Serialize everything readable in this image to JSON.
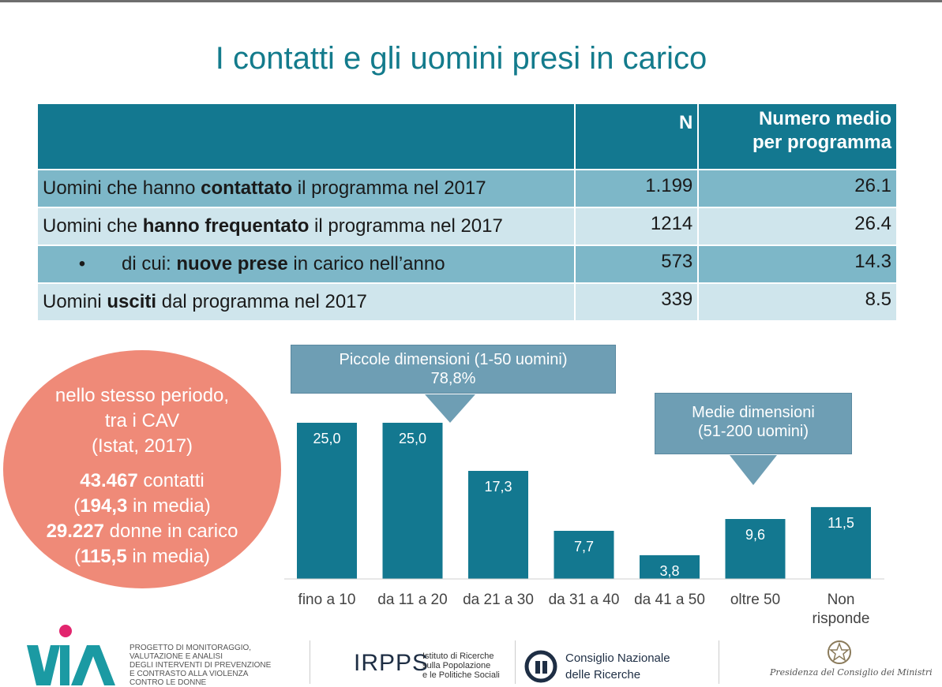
{
  "title": "I contatti e gli uomini presi in carico",
  "table": {
    "header": {
      "n": "N",
      "media_l1": "Numero medio",
      "media_l2": "per programma"
    },
    "rows": [
      {
        "pre": "Uomini che hanno ",
        "bold": "contattato",
        "post": " il programma nel 2017",
        "n": "1.199",
        "media": "26.1"
      },
      {
        "pre": "Uomini che ",
        "bold": "hanno frequentato",
        "post": " il programma nel 2017",
        "n": "1214",
        "media": "26.4"
      },
      {
        "bullet": "•",
        "pre": "di cui: ",
        "bold": "nuove prese",
        "post": " in carico nell’anno",
        "n": "573",
        "media": "14.3"
      },
      {
        "pre": "Uomini ",
        "bold": "usciti",
        "post": " dal programma nel 2017",
        "n": "339",
        "media": "8.5"
      }
    ]
  },
  "circle": {
    "l1": "nello stesso periodo,",
    "l2": "tra i CAV",
    "l3": "(Istat, 2017)",
    "b4": "43.467",
    "t4": " contatti",
    "p5a": "(",
    "b5": "194,3",
    "t5": " in media)",
    "b6": "29.227",
    "t6": " donne in carico",
    "p7a": "(",
    "b7": "115,5",
    "t7": " in media)"
  },
  "callouts": {
    "piccole_l1": "Piccole dimensioni (1-50 uomini)",
    "piccole_l2": "78,8%",
    "medie_l1": "Medie dimensioni",
    "medie_l2": "(51-200 uomini)"
  },
  "chart_data": {
    "type": "bar",
    "categories": [
      "fino a 10",
      "da 11 a 20",
      "da 21 a 30",
      "da 31 a 40",
      "da 41 a 50",
      "oltre 50",
      "Non risponde"
    ],
    "category_lines": [
      [
        "fino a 10"
      ],
      [
        "da 11 a 20"
      ],
      [
        "da 21 a 30"
      ],
      [
        "da 31 a 40"
      ],
      [
        "da 41 a 50"
      ],
      [
        "oltre 50"
      ],
      [
        "Non",
        "risponde"
      ]
    ],
    "values": [
      25.0,
      25.0,
      17.3,
      7.7,
      3.8,
      9.6,
      11.5
    ],
    "value_labels": [
      "25,0",
      "25,0",
      "17,3",
      "7,7",
      "3,8",
      "9,6",
      "11,5"
    ],
    "ylim": [
      0,
      25
    ],
    "bar_color": "#137890",
    "grid": false
  },
  "footer": {
    "via_text": [
      "PROGETTO DI MONITORAGGIO,",
      "VALUTAZIONE E ANALISI",
      "DEGLI INTERVENTI DI PREVENZIONE",
      "E CONTRASTO ALLA VIOLENZA",
      "CONTRO LE DONNE"
    ],
    "irpps": "IRPPS",
    "irpps_text": [
      "Istituto di Ricerche",
      "sulla Popolazione",
      "e le Politiche Sociali"
    ],
    "cnr_text": [
      "Consiglio Nazionale",
      "delle Ricerche"
    ],
    "pres_text": "Presidenza del Consiglio dei Ministri"
  },
  "colors": {
    "teal": "#137890",
    "title": "#137b8c",
    "row_dark": "#7db7c8",
    "row_light": "#cfe5ec",
    "circle": "#ef8a78",
    "callout": "#6e9eb4"
  }
}
